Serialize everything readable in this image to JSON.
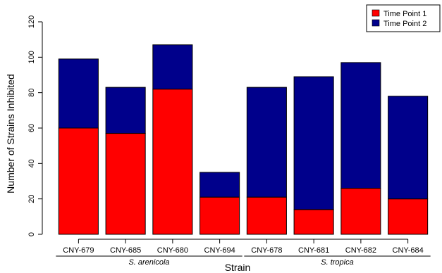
{
  "chart_data": {
    "type": "bar",
    "stacked": true,
    "categories": [
      "CNY-679",
      "CNY-685",
      "CNY-680",
      "CNY-694",
      "CNY-678",
      "CNY-681",
      "CNY-682",
      "CNY-684"
    ],
    "series": [
      {
        "name": "Time Point 1",
        "color": "#ff0000",
        "values": [
          60,
          57,
          82,
          21,
          21,
          14,
          26,
          20
        ]
      },
      {
        "name": "Time Point 2",
        "color": "#00008b",
        "values": [
          39,
          26,
          25,
          14,
          62,
          75,
          71,
          58
        ]
      }
    ],
    "totals": [
      99,
      83,
      107,
      35,
      83,
      89,
      97,
      78
    ],
    "groups": [
      {
        "label": "S. arenicola",
        "categories": [
          "CNY-679",
          "CNY-685",
          "CNY-680",
          "CNY-694"
        ]
      },
      {
        "label": "S. tropica",
        "categories": [
          "CNY-678",
          "CNY-681",
          "CNY-682",
          "CNY-684"
        ]
      }
    ],
    "xlabel": "Strain",
    "ylabel": "Number of Strains Inhibited",
    "ylim": [
      0,
      120
    ],
    "yticks": [
      0,
      20,
      40,
      60,
      80,
      100,
      120
    ],
    "legend_position": "top-right",
    "grid": false
  }
}
